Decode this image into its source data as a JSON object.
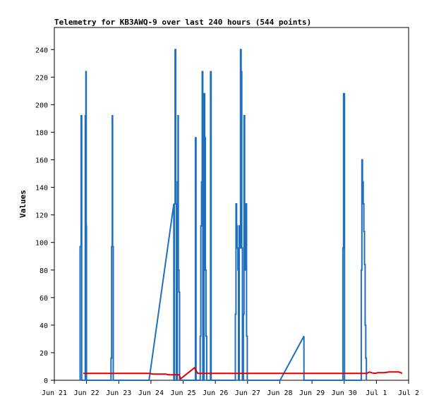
{
  "chart_data": {
    "type": "line",
    "title": "Telemetry for KB3AWQ-9 over last 240 hours (544 points)",
    "xlabel": "",
    "ylabel": "Values",
    "x_ticks": [
      "Jun 21",
      "Jun 22",
      "Jun 23",
      "Jun 24",
      "Jun 25",
      "Jun 26",
      "Jun 27",
      "Jun 28",
      "Jun 29",
      "Jun 30",
      "Jul 1",
      "Jul 2"
    ],
    "y_ticks": [
      "0",
      "20",
      "40",
      "60",
      "80",
      "100",
      "120",
      "140",
      "160",
      "180",
      "200",
      "220",
      "240"
    ],
    "xlim_days": [
      0,
      11
    ],
    "ylim": [
      0,
      256
    ],
    "grid": false,
    "series": [
      {
        "color": "#1f6fbf",
        "points": [
          [
            0.8,
            0
          ],
          [
            0.8,
            97
          ],
          [
            0.83,
            97
          ],
          [
            0.83,
            192
          ],
          [
            0.85,
            192
          ],
          [
            0.85,
            0
          ],
          [
            0.96,
            0
          ],
          [
            0.96,
            192
          ],
          [
            0.98,
            192
          ],
          [
            0.98,
            224
          ],
          [
            0.99,
            224
          ],
          [
            0.99,
            112
          ],
          [
            1.0,
            112
          ],
          [
            1.0,
            0
          ],
          [
            1.76,
            0
          ],
          [
            1.76,
            16
          ],
          [
            1.78,
            16
          ],
          [
            1.78,
            97
          ],
          [
            1.8,
            97
          ],
          [
            1.8,
            192
          ],
          [
            1.81,
            192
          ],
          [
            1.81,
            97
          ],
          [
            1.83,
            97
          ],
          [
            1.83,
            0
          ],
          [
            2.94,
            0
          ],
          [
            3.71,
            128
          ],
          [
            3.71,
            0
          ],
          [
            3.73,
            0
          ],
          [
            3.73,
            128
          ],
          [
            3.75,
            128
          ],
          [
            3.75,
            240
          ],
          [
            3.77,
            240
          ],
          [
            3.77,
            128
          ],
          [
            3.79,
            128
          ],
          [
            3.79,
            0
          ],
          [
            3.82,
            0
          ],
          [
            3.82,
            144
          ],
          [
            3.84,
            144
          ],
          [
            3.84,
            192
          ],
          [
            3.85,
            192
          ],
          [
            3.85,
            80
          ],
          [
            3.87,
            80
          ],
          [
            3.87,
            64
          ],
          [
            3.89,
            64
          ],
          [
            3.89,
            0
          ],
          [
            4.38,
            0
          ],
          [
            4.38,
            176
          ],
          [
            4.4,
            176
          ],
          [
            4.4,
            0
          ],
          [
            4.53,
            0
          ],
          [
            4.53,
            32
          ],
          [
            4.55,
            32
          ],
          [
            4.55,
            112
          ],
          [
            4.57,
            112
          ],
          [
            4.57,
            144
          ],
          [
            4.59,
            144
          ],
          [
            4.59,
            224
          ],
          [
            4.61,
            224
          ],
          [
            4.61,
            0
          ],
          [
            4.65,
            0
          ],
          [
            4.65,
            208
          ],
          [
            4.67,
            208
          ],
          [
            4.67,
            176
          ],
          [
            4.69,
            176
          ],
          [
            4.69,
            80
          ],
          [
            4.71,
            80
          ],
          [
            4.71,
            32
          ],
          [
            4.73,
            32
          ],
          [
            4.73,
            0
          ],
          [
            4.85,
            0
          ],
          [
            4.85,
            224
          ],
          [
            4.87,
            224
          ],
          [
            4.87,
            0
          ],
          [
            5.62,
            0
          ],
          [
            5.62,
            48
          ],
          [
            5.64,
            48
          ],
          [
            5.64,
            128
          ],
          [
            5.66,
            128
          ],
          [
            5.66,
            112
          ],
          [
            5.68,
            112
          ],
          [
            5.68,
            96
          ],
          [
            5.7,
            96
          ],
          [
            5.7,
            80
          ],
          [
            5.72,
            80
          ],
          [
            5.72,
            0
          ],
          [
            5.74,
            0
          ],
          [
            5.74,
            112
          ],
          [
            5.76,
            112
          ],
          [
            5.76,
            96
          ],
          [
            5.78,
            96
          ],
          [
            5.78,
            240
          ],
          [
            5.8,
            240
          ],
          [
            5.8,
            224
          ],
          [
            5.82,
            224
          ],
          [
            5.82,
            96
          ],
          [
            5.84,
            96
          ],
          [
            5.84,
            0
          ],
          [
            5.87,
            0
          ],
          [
            5.87,
            48
          ],
          [
            5.89,
            48
          ],
          [
            5.89,
            192
          ],
          [
            5.91,
            192
          ],
          [
            5.91,
            112
          ],
          [
            5.93,
            112
          ],
          [
            5.93,
            80
          ],
          [
            5.95,
            80
          ],
          [
            5.95,
            128
          ],
          [
            5.97,
            128
          ],
          [
            5.97,
            32
          ],
          [
            5.99,
            32
          ],
          [
            5.99,
            0
          ],
          [
            7.01,
            0
          ],
          [
            7.75,
            32
          ],
          [
            7.75,
            0
          ],
          [
            8.96,
            0
          ],
          [
            8.96,
            96
          ],
          [
            8.98,
            96
          ],
          [
            8.98,
            208
          ],
          [
            9.01,
            208
          ],
          [
            9.01,
            0
          ],
          [
            9.53,
            0
          ],
          [
            9.53,
            80
          ],
          [
            9.55,
            80
          ],
          [
            9.55,
            160
          ],
          [
            9.57,
            160
          ],
          [
            9.57,
            144
          ],
          [
            9.59,
            144
          ],
          [
            9.59,
            128
          ],
          [
            9.61,
            128
          ],
          [
            9.61,
            108
          ],
          [
            9.63,
            108
          ],
          [
            9.63,
            84
          ],
          [
            9.65,
            84
          ],
          [
            9.65,
            40
          ],
          [
            9.67,
            40
          ],
          [
            9.67,
            16
          ],
          [
            9.69,
            16
          ],
          [
            9.69,
            0
          ]
        ]
      },
      {
        "color": "#e00000",
        "points": [
          [
            0.9,
            5
          ],
          [
            2.95,
            5
          ],
          [
            3.05,
            4.5
          ],
          [
            3.45,
            4.5
          ],
          [
            3.55,
            4
          ],
          [
            3.88,
            4
          ],
          [
            3.92,
            1
          ],
          [
            4.35,
            9
          ],
          [
            4.45,
            5
          ],
          [
            9.7,
            5
          ],
          [
            9.78,
            6
          ],
          [
            9.85,
            5.5
          ],
          [
            9.95,
            5
          ],
          [
            10.05,
            5.5
          ],
          [
            10.25,
            5.5
          ],
          [
            10.4,
            6
          ],
          [
            10.7,
            6
          ],
          [
            10.8,
            5
          ]
        ]
      }
    ]
  }
}
